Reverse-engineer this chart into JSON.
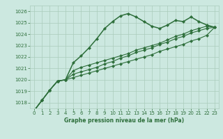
{
  "title": "Graphe pression niveau de la mer (hPa)",
  "bg_color": "#cce8e0",
  "grid_color": "#aaccbb",
  "line_color": "#2d6e3a",
  "xlim": [
    -0.5,
    23.5
  ],
  "ylim": [
    1017.5,
    1026.5
  ],
  "yticks": [
    1018,
    1019,
    1020,
    1021,
    1022,
    1023,
    1024,
    1025,
    1026
  ],
  "xticks": [
    0,
    1,
    2,
    3,
    4,
    5,
    6,
    7,
    8,
    9,
    10,
    11,
    12,
    13,
    14,
    15,
    16,
    17,
    18,
    19,
    20,
    21,
    22,
    23
  ],
  "series": [
    [
      1017.3,
      1018.2,
      1019.1,
      1019.9,
      1020.0,
      1021.5,
      1022.1,
      1022.8,
      1023.6,
      1024.5,
      1025.1,
      1025.6,
      1025.8,
      1025.5,
      1025.1,
      1024.7,
      1024.5,
      1024.8,
      1025.2,
      1025.1,
      1025.5,
      1025.1,
      1024.8,
      1024.6
    ],
    [
      1017.3,
      1018.2,
      1019.1,
      1019.9,
      1020.0,
      1020.8,
      1021.1,
      1021.3,
      1021.5,
      1021.7,
      1021.9,
      1022.1,
      1022.3,
      1022.6,
      1022.8,
      1023.0,
      1023.2,
      1023.5,
      1023.8,
      1024.0,
      1024.3,
      1024.5,
      1024.7,
      1024.6
    ],
    [
      1017.3,
      1018.2,
      1019.1,
      1019.9,
      1020.0,
      1020.5,
      1020.7,
      1020.9,
      1021.1,
      1021.4,
      1021.6,
      1021.9,
      1022.1,
      1022.4,
      1022.6,
      1022.8,
      1023.1,
      1023.3,
      1023.6,
      1023.8,
      1024.1,
      1024.3,
      1024.5,
      1024.6
    ],
    [
      1017.3,
      1018.2,
      1019.1,
      1019.9,
      1020.0,
      1020.2,
      1020.4,
      1020.6,
      1020.8,
      1021.0,
      1021.2,
      1021.4,
      1021.6,
      1021.8,
      1022.0,
      1022.2,
      1022.5,
      1022.7,
      1022.9,
      1023.1,
      1023.4,
      1023.6,
      1023.9,
      1024.6
    ]
  ]
}
